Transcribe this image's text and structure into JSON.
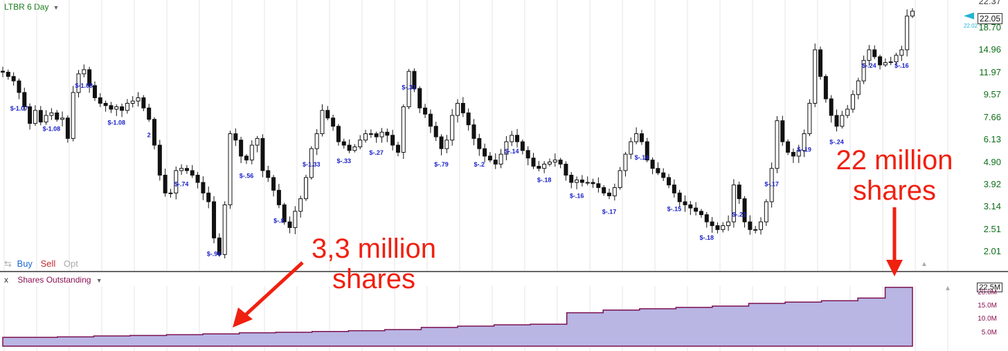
{
  "top_panel": {
    "title": "LTBR 6 Day",
    "price_label": "22.05",
    "small_price": "22.02",
    "top_cut_label": "22.37",
    "yticks": [
      "18.70",
      "14.96",
      "11.97",
      "9.57",
      "7.66",
      "6.13",
      "4.90",
      "3.92",
      "3.14",
      "2.51",
      "2.01"
    ],
    "controls": {
      "buy": "Buy",
      "sell": "Sell",
      "opt": "Opt"
    }
  },
  "bottom_panel": {
    "close": "x",
    "title": "Shares Outstanding",
    "value_label": "22.5M",
    "yticks": [
      "20.0M",
      "15.0M",
      "10.0M",
      "5.0M"
    ]
  },
  "annotations": {
    "left_line1": "3,3 million",
    "left_line2": "shares",
    "right_line1": "22 million",
    "right_line2": "shares"
  },
  "colors": {
    "accent": "#f02010",
    "grid": "#e4e4e4",
    "shares_fill": "#b9b6e4",
    "shares_line": "#7a1050",
    "price_axis": "#0f6e1a",
    "event_label": "#1a22c8"
  },
  "chart_data": [
    {
      "type": "candlestick",
      "title": "LTBR 6 Day",
      "scale": "log",
      "ylim": [
        1.8,
        22.37
      ],
      "last": 22.05,
      "closes": [
        12.0,
        11.5,
        11.0,
        9.8,
        8.5,
        7.2,
        8.2,
        7.3,
        7.8,
        8.0,
        7.5,
        7.6,
        6.2,
        9.8,
        11.8,
        12.3,
        10.5,
        9.3,
        8.8,
        8.6,
        8.3,
        8.5,
        8.2,
        8.8,
        9.0,
        9.3,
        8.4,
        7.5,
        5.8,
        4.3,
        3.6,
        3.6,
        4.5,
        4.6,
        4.5,
        4.3,
        4.0,
        3.6,
        3.3,
        2.3,
        1.95,
        3.2,
        6.5,
        6.1,
        5.2,
        5.0,
        5.8,
        6.2,
        4.5,
        4.2,
        3.7,
        3.2,
        2.7,
        2.55,
        3.0,
        3.4,
        4.2,
        5.6,
        6.5,
        8.2,
        7.6,
        7.0,
        6.0,
        5.8,
        5.5,
        5.7,
        6.1,
        6.5,
        6.5,
        6.3,
        6.6,
        6.4,
        5.8,
        5.4,
        8.5,
        12.1,
        10.2,
        8.4,
        7.9,
        7.0,
        6.3,
        5.6,
        6.1,
        7.8,
        8.8,
        8.0,
        7.1,
        6.2,
        5.6,
        5.2,
        5.0,
        4.8,
        5.3,
        6.0,
        6.4,
        6.0,
        5.5,
        5.1,
        4.7,
        4.6,
        4.8,
        4.9,
        5.0,
        4.8,
        4.3,
        4.0,
        4.1,
        4.0,
        4.0,
        3.95,
        3.8,
        3.6,
        3.5,
        3.8,
        4.5,
        5.3,
        6.0,
        6.5,
        6.0,
        5.0,
        4.6,
        4.4,
        4.2,
        3.9,
        3.6,
        3.3,
        3.2,
        3.1,
        3.0,
        2.9,
        2.7,
        2.6,
        2.5,
        2.6,
        2.7,
        3.9,
        3.4,
        2.7,
        2.5,
        2.5,
        2.7,
        3.3,
        4.6,
        7.4,
        6.0,
        5.4,
        5.2,
        5.5,
        6.5,
        8.8,
        15.0,
        11.5,
        9.2,
        7.8,
        7.0,
        7.8,
        8.3,
        9.6,
        11.0,
        13.5,
        15.0,
        14.0,
        12.9,
        13.2,
        13.3,
        14.2,
        15.0,
        21.0,
        22.05
      ],
      "event_labels": [
        "$-1.07",
        "$-1.08",
        "$-1.08",
        "$-1.08",
        "2",
        "$-.74",
        "$-.96",
        "$-.56",
        "$-.8",
        "$-1.33",
        "$-.33",
        "$-.27",
        "$-.31",
        "$-.79",
        "$-.2",
        "$-.14",
        "$-.18",
        "$-.16",
        "$-.17",
        "$-.14",
        "$-.15",
        "$-.18",
        "$-.21",
        "$-.17",
        "$-.19",
        "$-.24",
        "$-.24",
        "$-.16"
      ]
    },
    {
      "type": "area",
      "title": "Shares Outstanding",
      "ylabel_unit": "M",
      "ylim": [
        0,
        22.5
      ],
      "x": [
        0,
        0.06,
        0.1,
        0.14,
        0.18,
        0.22,
        0.26,
        0.3,
        0.34,
        0.38,
        0.42,
        0.46,
        0.5,
        0.54,
        0.58,
        0.62,
        0.66,
        0.7,
        0.74,
        0.78,
        0.82,
        0.86,
        0.9,
        0.94,
        0.97,
        1.0
      ],
      "values": [
        3.3,
        3.5,
        3.8,
        4.0,
        4.3,
        4.6,
        5.0,
        5.2,
        5.5,
        5.8,
        6.2,
        7.0,
        7.5,
        8.0,
        8.2,
        12.5,
        13.5,
        14.0,
        14.5,
        15.0,
        16.0,
        16.5,
        17.0,
        18.0,
        22.0,
        22.0
      ]
    }
  ]
}
